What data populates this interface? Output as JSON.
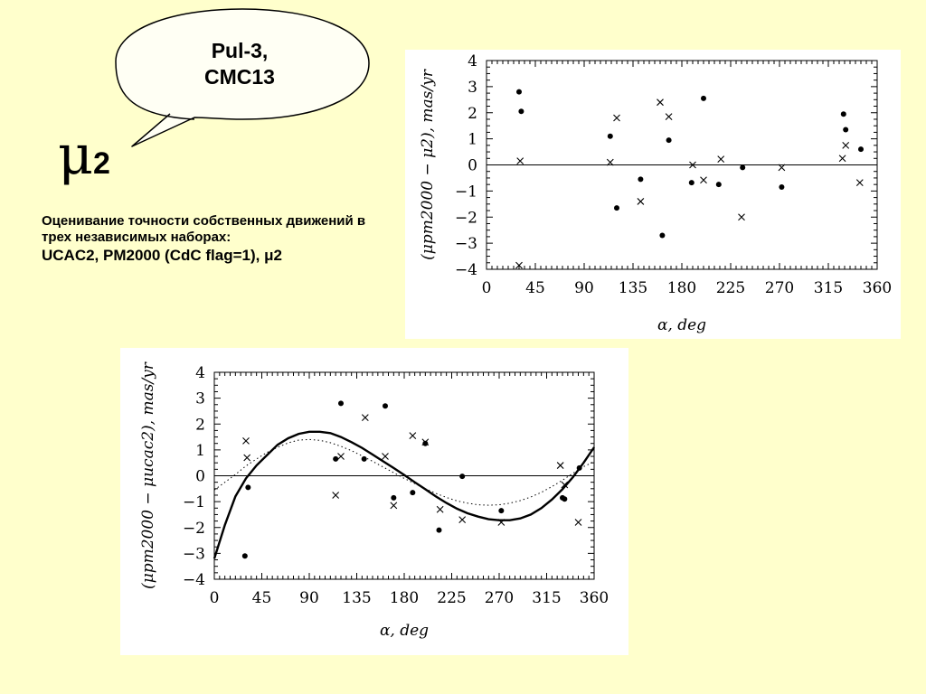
{
  "callout": {
    "line1": "Pul-3,",
    "line2": "CMC13"
  },
  "mu_title": {
    "symbol": "μ",
    "sub": "2"
  },
  "description": {
    "line1": "Оценивание точности собственных движений в трех независимых наборах:",
    "line2": "UCAC2, PM2000 (CdC flag=1), μ2"
  },
  "chart_data": [
    {
      "type": "scatter",
      "xlabel": "α, deg",
      "ylabel": "(μpm2000 − μ2), mas/yr",
      "xlim": [
        0,
        360
      ],
      "ylim": [
        -4,
        4
      ],
      "xticks": [
        0,
        45,
        90,
        135,
        180,
        225,
        270,
        315,
        360
      ],
      "yticks": [
        -4,
        -3,
        -2,
        -1,
        0,
        1,
        2,
        3,
        4
      ],
      "zero_line": true,
      "series": [
        {
          "marker": "dot",
          "points": [
            [
              30,
              2.8
            ],
            [
              32,
              2.05
            ],
            [
              114,
              1.1
            ],
            [
              120,
              -1.65
            ],
            [
              142,
              -0.55
            ],
            [
              162,
              -2.7
            ],
            [
              168,
              0.95
            ],
            [
              189,
              -0.68
            ],
            [
              200,
              2.55
            ],
            [
              214,
              -0.75
            ],
            [
              236,
              -0.1
            ],
            [
              272,
              -0.85
            ],
            [
              329,
              1.95
            ],
            [
              331,
              1.35
            ],
            [
              345,
              0.6
            ]
          ]
        },
        {
          "marker": "cross",
          "points": [
            [
              31,
              0.15
            ],
            [
              30,
              -3.85
            ],
            [
              114,
              0.1
            ],
            [
              120,
              1.8
            ],
            [
              142,
              -1.4
            ],
            [
              160,
              2.4
            ],
            [
              168,
              1.85
            ],
            [
              190,
              0.0
            ],
            [
              200,
              -0.58
            ],
            [
              216,
              0.22
            ],
            [
              235,
              -2.0
            ],
            [
              272,
              -0.1
            ],
            [
              328,
              0.25
            ],
            [
              331,
              0.75
            ],
            [
              344,
              -0.68
            ]
          ]
        }
      ]
    },
    {
      "type": "scatter",
      "xlabel": "α, deg",
      "ylabel": "(μpm2000 − μucac2), mas/yr",
      "xlim": [
        0,
        360
      ],
      "ylim": [
        -4,
        4
      ],
      "xticks": [
        0,
        45,
        90,
        135,
        180,
        225,
        270,
        315,
        360
      ],
      "yticks": [
        -4,
        -3,
        -2,
        -1,
        0,
        1,
        2,
        3,
        4
      ],
      "zero_line": true,
      "series": [
        {
          "marker": "dot",
          "points": [
            [
              29,
              -3.1
            ],
            [
              32,
              -0.45
            ],
            [
              115,
              0.65
            ],
            [
              120,
              2.8
            ],
            [
              142,
              0.65
            ],
            [
              162,
              2.7
            ],
            [
              170,
              -0.85
            ],
            [
              188,
              -0.65
            ],
            [
              200,
              1.25
            ],
            [
              213,
              -2.1
            ],
            [
              235,
              -0.02
            ],
            [
              272,
              -1.35
            ],
            [
              330,
              -0.85
            ],
            [
              332,
              -0.9
            ],
            [
              346,
              0.3
            ]
          ]
        },
        {
          "marker": "cross",
          "points": [
            [
              30,
              1.35
            ],
            [
              31,
              0.7
            ],
            [
              115,
              -0.75
            ],
            [
              120,
              0.75
            ],
            [
              143,
              2.25
            ],
            [
              162,
              0.75
            ],
            [
              170,
              -1.15
            ],
            [
              188,
              1.55
            ],
            [
              200,
              1.3
            ],
            [
              214,
              -1.3
            ],
            [
              235,
              -1.7
            ],
            [
              272,
              -1.8
            ],
            [
              328,
              0.4
            ],
            [
              332,
              -0.35
            ],
            [
              345,
              -1.8
            ]
          ]
        },
        {
          "marker": "solid-curve",
          "points": [
            [
              0,
              -3.2
            ],
            [
              10,
              -1.9
            ],
            [
              20,
              -0.8
            ],
            [
              30,
              -0.1
            ],
            [
              40,
              0.4
            ],
            [
              50,
              0.8
            ],
            [
              60,
              1.2
            ],
            [
              70,
              1.45
            ],
            [
              80,
              1.62
            ],
            [
              90,
              1.7
            ],
            [
              100,
              1.7
            ],
            [
              110,
              1.65
            ],
            [
              120,
              1.5
            ],
            [
              130,
              1.3
            ],
            [
              140,
              1.08
            ],
            [
              150,
              0.82
            ],
            [
              160,
              0.56
            ],
            [
              170,
              0.3
            ],
            [
              180,
              0.03
            ],
            [
              190,
              -0.25
            ],
            [
              200,
              -0.52
            ],
            [
              210,
              -0.8
            ],
            [
              220,
              -1.05
            ],
            [
              230,
              -1.27
            ],
            [
              240,
              -1.45
            ],
            [
              250,
              -1.58
            ],
            [
              260,
              -1.68
            ],
            [
              270,
              -1.72
            ],
            [
              280,
              -1.72
            ],
            [
              290,
              -1.65
            ],
            [
              300,
              -1.5
            ],
            [
              310,
              -1.25
            ],
            [
              320,
              -0.92
            ],
            [
              330,
              -0.52
            ],
            [
              340,
              -0.05
            ],
            [
              350,
              0.5
            ],
            [
              360,
              1.1
            ]
          ]
        },
        {
          "marker": "dotted-curve",
          "points": [
            [
              0,
              -0.55
            ],
            [
              10,
              -0.25
            ],
            [
              20,
              0.05
            ],
            [
              30,
              0.38
            ],
            [
              40,
              0.65
            ],
            [
              50,
              0.9
            ],
            [
              60,
              1.1
            ],
            [
              70,
              1.27
            ],
            [
              80,
              1.38
            ],
            [
              90,
              1.4
            ],
            [
              100,
              1.37
            ],
            [
              110,
              1.28
            ],
            [
              120,
              1.14
            ],
            [
              130,
              0.97
            ],
            [
              140,
              0.77
            ],
            [
              150,
              0.56
            ],
            [
              160,
              0.34
            ],
            [
              170,
              0.12
            ],
            [
              180,
              -0.1
            ],
            [
              190,
              -0.3
            ],
            [
              200,
              -0.5
            ],
            [
              210,
              -0.68
            ],
            [
              220,
              -0.84
            ],
            [
              230,
              -0.97
            ],
            [
              240,
              -1.06
            ],
            [
              250,
              -1.12
            ],
            [
              260,
              -1.14
            ],
            [
              270,
              -1.12
            ],
            [
              280,
              -1.06
            ],
            [
              290,
              -0.96
            ],
            [
              300,
              -0.82
            ],
            [
              310,
              -0.64
            ],
            [
              320,
              -0.42
            ],
            [
              330,
              -0.17
            ],
            [
              340,
              0.1
            ],
            [
              350,
              0.35
            ],
            [
              360,
              0.55
            ]
          ]
        }
      ]
    }
  ]
}
